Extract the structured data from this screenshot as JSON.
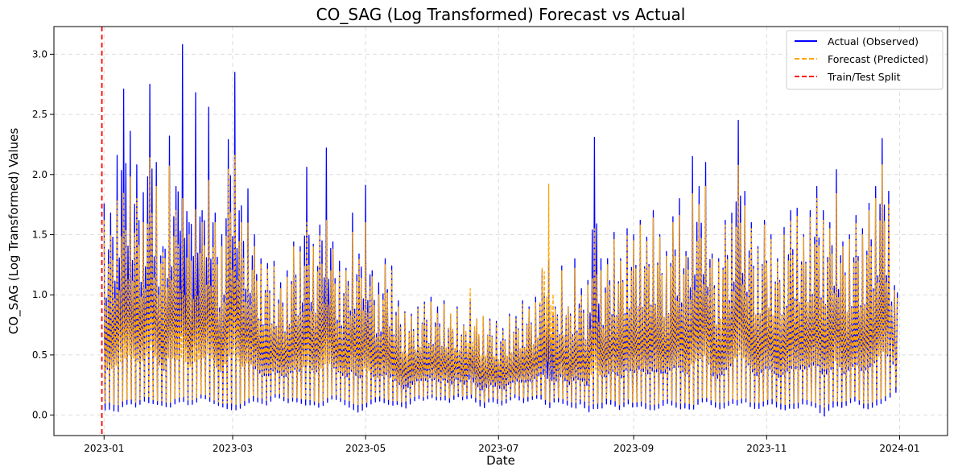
{
  "chart_data": {
    "type": "line",
    "title": "CO_SAG (Log Transformed) Forecast vs Actual",
    "xlabel": "Date",
    "ylabel": "CO_SAG (Log Transformed) Values",
    "xlim": [
      "2022-12-09",
      "2024-01-23"
    ],
    "ylim": [
      -0.17,
      3.23
    ],
    "x_ticks": [
      "2023-01-01",
      "2023-03-01",
      "2023-05-01",
      "2023-07-01",
      "2023-09-01",
      "2023-11-01",
      "2024-01-01"
    ],
    "x_tick_labels": [
      "2023-01",
      "2023-03",
      "2023-05",
      "2023-07",
      "2023-09",
      "2023-11",
      "2024-01"
    ],
    "y_ticks": [
      0.0,
      0.5,
      1.0,
      1.5,
      2.0,
      2.5,
      3.0
    ],
    "y_tick_labels": [
      "0.0",
      "0.5",
      "1.0",
      "1.5",
      "2.0",
      "2.5",
      "3.0"
    ],
    "grid": true,
    "legend_position": "top-right",
    "split_date": "2022-12-31",
    "series": [
      {
        "name": "Actual (Observed)",
        "color": "#0000ff",
        "style": "solid",
        "dates": [
          "2023-01-01",
          "2023-01-04",
          "2023-01-07",
          "2023-01-10",
          "2023-01-13",
          "2023-01-16",
          "2023-01-19",
          "2023-01-22",
          "2023-01-25",
          "2023-01-28",
          "2023-01-31",
          "2023-02-03",
          "2023-02-06",
          "2023-02-09",
          "2023-02-12",
          "2023-02-15",
          "2023-02-18",
          "2023-02-21",
          "2023-02-24",
          "2023-02-27",
          "2023-03-02",
          "2023-03-05",
          "2023-03-08",
          "2023-03-11",
          "2023-03-14",
          "2023-03-17",
          "2023-03-20",
          "2023-03-23",
          "2023-03-26",
          "2023-03-29",
          "2023-04-01",
          "2023-04-04",
          "2023-04-07",
          "2023-04-10",
          "2023-04-13",
          "2023-04-16",
          "2023-04-19",
          "2023-04-22",
          "2023-04-25",
          "2023-04-28",
          "2023-05-01",
          "2023-05-04",
          "2023-05-07",
          "2023-05-10",
          "2023-05-13",
          "2023-05-16",
          "2023-05-19",
          "2023-05-22",
          "2023-05-25",
          "2023-05-28",
          "2023-05-31",
          "2023-06-03",
          "2023-06-06",
          "2023-06-09",
          "2023-06-12",
          "2023-06-15",
          "2023-06-18",
          "2023-06-21",
          "2023-06-24",
          "2023-06-27",
          "2023-06-30",
          "2023-07-03",
          "2023-07-06",
          "2023-07-09",
          "2023-07-12",
          "2023-07-15",
          "2023-07-18",
          "2023-07-21",
          "2023-07-24",
          "2023-07-27",
          "2023-07-30",
          "2023-08-02",
          "2023-08-05",
          "2023-08-08",
          "2023-08-11",
          "2023-08-14",
          "2023-08-17",
          "2023-08-20",
          "2023-08-23",
          "2023-08-26",
          "2023-08-29",
          "2023-09-01",
          "2023-09-04",
          "2023-09-07",
          "2023-09-10",
          "2023-09-13",
          "2023-09-16",
          "2023-09-19",
          "2023-09-22",
          "2023-09-25",
          "2023-09-28",
          "2023-10-01",
          "2023-10-04",
          "2023-10-07",
          "2023-10-10",
          "2023-10-13",
          "2023-10-16",
          "2023-10-19",
          "2023-10-22",
          "2023-10-25",
          "2023-10-28",
          "2023-10-31",
          "2023-11-03",
          "2023-11-06",
          "2023-11-09",
          "2023-11-12",
          "2023-11-15",
          "2023-11-18",
          "2023-11-21",
          "2023-11-24",
          "2023-11-27",
          "2023-11-30",
          "2023-12-03",
          "2023-12-06",
          "2023-12-09",
          "2023-12-12",
          "2023-12-15",
          "2023-12-18",
          "2023-12-21",
          "2023-12-24",
          "2023-12-27",
          "2023-12-31"
        ],
        "high": [
          1.76,
          1.68,
          2.16,
          2.71,
          2.36,
          2.08,
          1.85,
          2.75,
          2.1,
          1.4,
          2.32,
          1.9,
          3.08,
          1.6,
          2.68,
          1.7,
          2.56,
          1.68,
          1.5,
          2.29,
          2.85,
          1.74,
          1.88,
          1.5,
          1.3,
          1.26,
          1.28,
          1.1,
          1.2,
          1.44,
          1.4,
          2.06,
          1.42,
          1.58,
          2.22,
          1.44,
          1.28,
          1.22,
          1.68,
          1.34,
          1.91,
          1.2,
          1.1,
          1.3,
          1.24,
          0.95,
          0.86,
          0.84,
          0.9,
          0.94,
          0.98,
          0.9,
          0.95,
          0.84,
          0.9,
          0.75,
          0.94,
          0.8,
          0.82,
          0.8,
          0.78,
          0.72,
          0.84,
          0.82,
          0.95,
          0.9,
          0.98,
          1.2,
          1.28,
          0.9,
          1.24,
          0.9,
          1.3,
          1.05,
          1.12,
          2.31,
          1.3,
          1.3,
          1.52,
          1.3,
          1.55,
          1.5,
          1.62,
          1.48,
          1.7,
          1.5,
          1.36,
          1.65,
          1.8,
          1.36,
          2.15,
          1.9,
          2.1,
          1.34,
          1.3,
          1.62,
          1.68,
          2.45,
          1.86,
          1.6,
          1.4,
          1.62,
          1.5,
          1.3,
          1.56,
          1.7,
          1.72,
          1.5,
          1.7,
          1.9,
          1.7,
          1.6,
          2.04,
          1.44,
          1.5,
          1.66,
          1.55,
          1.76,
          1.9,
          2.3,
          1.86,
          1.02
        ],
        "low": [
          0.04,
          0.05,
          0.02,
          0.08,
          0.1,
          0.06,
          0.12,
          0.1,
          0.09,
          0.08,
          0.06,
          0.1,
          0.12,
          0.08,
          0.1,
          0.15,
          0.12,
          0.09,
          0.07,
          0.05,
          0.04,
          0.06,
          0.1,
          0.12,
          0.1,
          0.08,
          0.15,
          0.14,
          0.1,
          0.12,
          0.1,
          0.08,
          0.09,
          0.06,
          0.1,
          0.14,
          0.12,
          0.08,
          0.05,
          0.02,
          0.06,
          0.1,
          0.12,
          0.1,
          0.08,
          0.09,
          0.05,
          0.1,
          0.14,
          0.12,
          0.15,
          0.12,
          0.13,
          0.1,
          0.16,
          0.12,
          0.15,
          0.1,
          0.05,
          0.12,
          0.1,
          0.08,
          0.12,
          0.15,
          0.1,
          0.12,
          0.14,
          0.13,
          0.05,
          0.12,
          0.1,
          0.08,
          0.05,
          0.1,
          0.02,
          0.06,
          0.05,
          0.1,
          0.08,
          0.04,
          0.1,
          0.06,
          0.08,
          0.05,
          0.04,
          0.06,
          0.1,
          0.08,
          0.05,
          0.06,
          0.04,
          0.1,
          0.12,
          0.08,
          0.05,
          0.06,
          0.1,
          0.08,
          0.12,
          0.06,
          0.05,
          0.08,
          0.1,
          0.06,
          0.04,
          0.06,
          0.05,
          0.1,
          0.08,
          0.06,
          -0.02,
          0.05,
          0.08,
          0.06,
          0.1,
          0.12,
          0.06,
          0.05,
          0.08,
          0.1,
          0.14,
          0.2
        ]
      },
      {
        "name": "Forecast (Predicted)",
        "color": "#ffa500",
        "style": "dashed",
        "dates": [
          "2023-01-01",
          "2023-01-04",
          "2023-01-07",
          "2023-01-10",
          "2023-01-13",
          "2023-01-16",
          "2023-01-19",
          "2023-01-22",
          "2023-01-25",
          "2023-01-28",
          "2023-01-31",
          "2023-02-03",
          "2023-02-06",
          "2023-02-09",
          "2023-02-12",
          "2023-02-15",
          "2023-02-18",
          "2023-02-21",
          "2023-02-24",
          "2023-02-27",
          "2023-03-02",
          "2023-03-05",
          "2023-03-08",
          "2023-03-11",
          "2023-03-14",
          "2023-03-17",
          "2023-03-20",
          "2023-03-23",
          "2023-03-26",
          "2023-03-29",
          "2023-04-01",
          "2023-04-04",
          "2023-04-07",
          "2023-04-10",
          "2023-04-13",
          "2023-04-16",
          "2023-04-19",
          "2023-04-22",
          "2023-04-25",
          "2023-04-28",
          "2023-05-01",
          "2023-05-04",
          "2023-05-07",
          "2023-05-10",
          "2023-05-13",
          "2023-05-16",
          "2023-05-19",
          "2023-05-22",
          "2023-05-25",
          "2023-05-28",
          "2023-05-31",
          "2023-06-03",
          "2023-06-06",
          "2023-06-09",
          "2023-06-12",
          "2023-06-15",
          "2023-06-18",
          "2023-06-21",
          "2023-06-24",
          "2023-06-27",
          "2023-06-30",
          "2023-07-03",
          "2023-07-06",
          "2023-07-09",
          "2023-07-12",
          "2023-07-15",
          "2023-07-18",
          "2023-07-21",
          "2023-07-24",
          "2023-07-27",
          "2023-07-30",
          "2023-08-02",
          "2023-08-05",
          "2023-08-08",
          "2023-08-11",
          "2023-08-14",
          "2023-08-17",
          "2023-08-20",
          "2023-08-23",
          "2023-08-26",
          "2023-08-29",
          "2023-09-01",
          "2023-09-04",
          "2023-09-07",
          "2023-09-10",
          "2023-09-13",
          "2023-09-16",
          "2023-09-19",
          "2023-09-22",
          "2023-09-25",
          "2023-09-28",
          "2023-10-01",
          "2023-10-04",
          "2023-10-07",
          "2023-10-10",
          "2023-10-13",
          "2023-10-16",
          "2023-10-19",
          "2023-10-22",
          "2023-10-25",
          "2023-10-28",
          "2023-10-31",
          "2023-11-03",
          "2023-11-06",
          "2023-11-09",
          "2023-11-12",
          "2023-11-15",
          "2023-11-18",
          "2023-11-21",
          "2023-11-24",
          "2023-11-27",
          "2023-11-30",
          "2023-12-03",
          "2023-12-06",
          "2023-12-09",
          "2023-12-12",
          "2023-12-15",
          "2023-12-18",
          "2023-12-21",
          "2023-12-24",
          "2023-12-27",
          "2023-12-31"
        ],
        "high": [
          1.62,
          1.5,
          1.78,
          1.85,
          1.98,
          1.8,
          1.6,
          2.14,
          1.9,
          1.36,
          2.07,
          1.7,
          1.8,
          1.5,
          1.71,
          1.6,
          1.95,
          1.6,
          1.4,
          2.05,
          2.16,
          1.6,
          1.6,
          1.4,
          1.26,
          1.22,
          1.24,
          1.05,
          1.15,
          1.4,
          1.36,
          1.6,
          1.4,
          1.5,
          1.62,
          1.38,
          1.2,
          1.2,
          1.52,
          1.3,
          1.6,
          1.15,
          1.0,
          1.25,
          1.2,
          0.9,
          0.85,
          0.82,
          0.88,
          0.92,
          0.94,
          0.85,
          0.92,
          0.84,
          0.88,
          0.74,
          1.05,
          0.8,
          0.82,
          0.78,
          0.76,
          0.7,
          0.82,
          0.8,
          0.92,
          0.88,
          0.94,
          1.22,
          1.92,
          0.88,
          1.2,
          0.9,
          1.22,
          1.0,
          1.08,
          1.55,
          1.2,
          1.25,
          1.46,
          1.28,
          1.5,
          1.45,
          1.58,
          1.45,
          1.64,
          1.48,
          1.32,
          1.6,
          1.66,
          1.32,
          1.84,
          1.75,
          1.9,
          1.3,
          1.28,
          1.58,
          1.6,
          2.08,
          1.74,
          1.55,
          1.38,
          1.58,
          1.46,
          1.28,
          1.5,
          1.62,
          1.66,
          1.48,
          1.65,
          1.8,
          1.62,
          1.55,
          1.84,
          1.4,
          1.46,
          1.6,
          1.5,
          1.7,
          1.8,
          2.08,
          1.76,
          0.98
        ],
        "low": [
          0.1,
          0.1,
          0.08,
          0.12,
          0.14,
          0.1,
          0.16,
          0.14,
          0.12,
          0.12,
          0.1,
          0.14,
          0.16,
          0.12,
          0.14,
          0.18,
          0.16,
          0.12,
          0.1,
          0.1,
          0.08,
          0.1,
          0.14,
          0.16,
          0.14,
          0.12,
          0.18,
          0.17,
          0.14,
          0.15,
          0.14,
          0.12,
          0.12,
          0.1,
          0.14,
          0.17,
          0.15,
          0.12,
          0.1,
          0.08,
          0.1,
          0.14,
          0.15,
          0.14,
          0.12,
          0.12,
          0.1,
          0.14,
          0.17,
          0.15,
          0.18,
          0.15,
          0.16,
          0.14,
          0.19,
          0.15,
          0.18,
          0.14,
          0.1,
          0.15,
          0.14,
          0.12,
          0.15,
          0.18,
          0.14,
          0.15,
          0.17,
          0.16,
          0.1,
          0.15,
          0.14,
          0.12,
          0.1,
          0.14,
          0.08,
          0.1,
          0.1,
          0.14,
          0.12,
          0.08,
          0.14,
          0.1,
          0.12,
          0.1,
          0.08,
          0.1,
          0.14,
          0.12,
          0.1,
          0.1,
          0.08,
          0.14,
          0.15,
          0.12,
          0.1,
          0.1,
          0.14,
          0.12,
          0.15,
          0.1,
          0.1,
          0.12,
          0.14,
          0.1,
          0.08,
          0.1,
          0.1,
          0.14,
          0.12,
          0.1,
          0.06,
          0.1,
          0.12,
          0.1,
          0.14,
          0.15,
          0.1,
          0.1,
          0.12,
          0.14,
          0.18,
          0.24
        ]
      }
    ],
    "legend": [
      {
        "label": "Actual (Observed)",
        "color": "#0000ff",
        "style": "solid"
      },
      {
        "label": "Forecast (Predicted)",
        "color": "#ffa500",
        "style": "dashed"
      },
      {
        "label": "Train/Test Split",
        "color": "#ff0000",
        "style": "dashed"
      }
    ]
  }
}
